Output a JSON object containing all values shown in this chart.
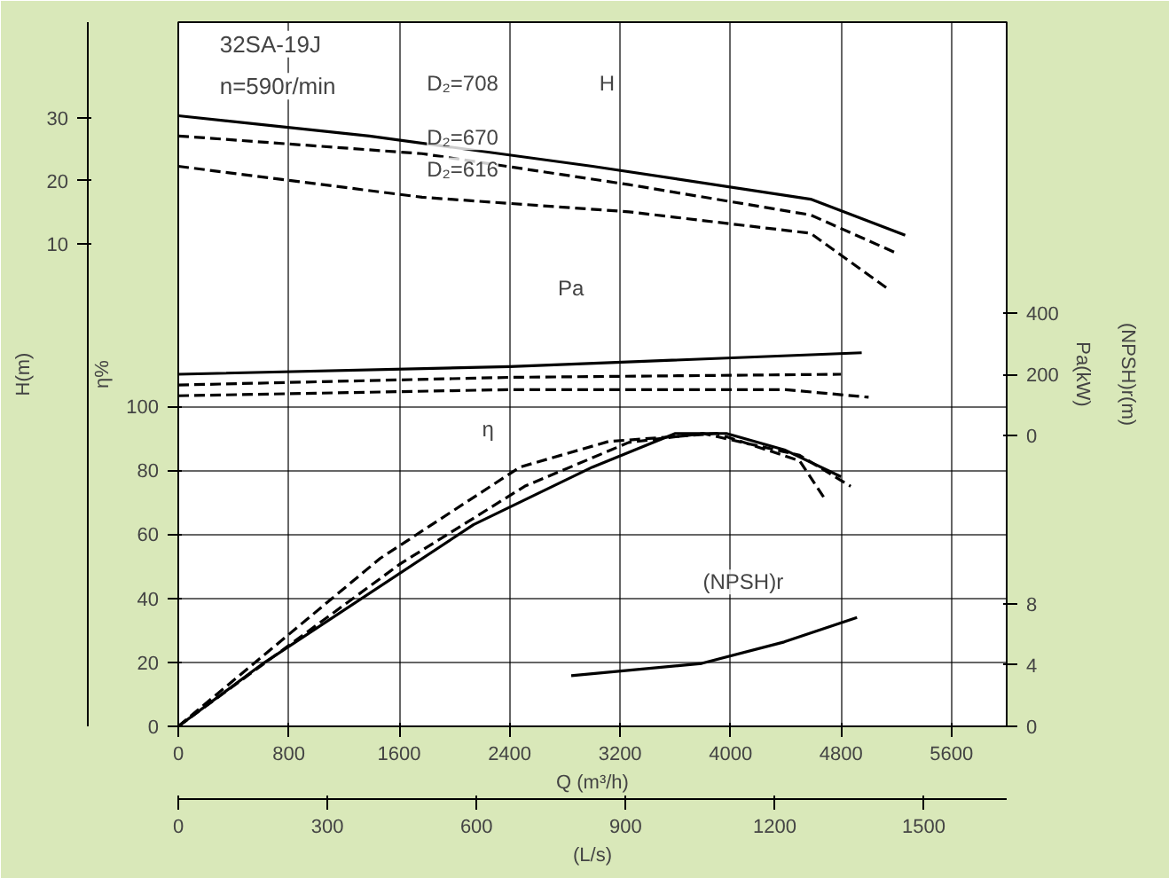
{
  "chart_data": [
    {
      "type": "line",
      "title": "32SA-19J",
      "subtitle": "n=590r/min",
      "xlabel": "Q (m³/h)",
      "x2label": "(L/s)",
      "ylabel": "η%",
      "y2label": "H(m)",
      "y3label": "Pa(kW)",
      "xlim": [
        0,
        6000
      ],
      "xticks": [
        0,
        800,
        1600,
        2400,
        3200,
        4000,
        4800,
        5600
      ],
      "x2lim": [
        0,
        1666.7
      ],
      "x2ticks": [
        0,
        300,
        600,
        900,
        1200,
        1500
      ],
      "ylim": [
        0,
        220
      ],
      "yticks": [
        0,
        20,
        40,
        60,
        80,
        100
      ],
      "y2lim": [
        -66.3,
        45.1
      ],
      "y2ticks": [
        10,
        20,
        30
      ],
      "y3lim": [
        -947,
        1347
      ],
      "y3ticks": [
        0,
        200,
        400
      ],
      "grid": true,
      "marker": "none",
      "series": [
        {
          "axis": "y2",
          "color": "#000000",
          "line_style": "solid",
          "x": [
            0,
            1384,
            3000,
            4580,
            5265
          ],
          "values": [
            30.3,
            27.1,
            22.3,
            17.1,
            11.4
          ]
        },
        {
          "axis": "y2",
          "color": "#000000",
          "line_style": "dashed",
          "x": [
            0,
            1766,
            3263,
            4580,
            5198
          ],
          "values": [
            27.1,
            24.3,
            19.4,
            14.6,
            8.6
          ]
        },
        {
          "axis": "y2",
          "color": "#000000",
          "line_style": "dashed",
          "x": [
            0,
            1766,
            3263,
            4580,
            5141
          ],
          "values": [
            22.3,
            17.4,
            15.1,
            11.7,
            2.9
          ]
        },
        {
          "axis": "y3",
          "color": "#000000",
          "line_style": "solid",
          "x": [
            0,
            2400,
            4950
          ],
          "values": [
            200,
            225,
            270
          ]
        },
        {
          "axis": "y3",
          "color": "#000000",
          "line_style": "dashed",
          "x": [
            0,
            2400,
            4800
          ],
          "values": [
            165,
            190,
            200
          ]
        },
        {
          "axis": "y3",
          "color": "#000000",
          "line_style": "dashed",
          "x": [
            0,
            2400,
            4400,
            5000
          ],
          "values": [
            130,
            150,
            150,
            125
          ]
        },
        {
          "color": "#000000",
          "line_style": "solid",
          "x": [
            0,
            619,
            2138,
            3000,
            3600,
            3970,
            4390,
            4800
          ],
          "values": [
            0,
            19.8,
            63,
            81,
            91.5,
            91.5,
            86.4,
            78
          ]
        },
        {
          "color": "#000000",
          "line_style": "dashed",
          "x": [
            0,
            1463,
            2475,
            3116,
            3900,
            4500,
            4690
          ],
          "values": [
            0,
            52.5,
            81,
            89,
            91.5,
            83,
            70.6
          ]
        },
        {
          "color": "#000000",
          "line_style": "dashed",
          "x": [
            0,
            1609,
            2509,
            3263,
            3800,
            4500,
            4870
          ],
          "values": [
            0,
            50.8,
            75,
            88.7,
            91.5,
            84.7,
            75
          ]
        }
      ],
      "annotations": [
        "D₂=708",
        "D₂=670",
        "D₂=616",
        "H",
        "Pa",
        "η"
      ]
    },
    {
      "type": "line",
      "ylabel": "(NPSH)r(m)",
      "xlim": [
        0,
        6000
      ],
      "ylim": [
        0,
        45.9
      ],
      "yticks": [
        0,
        4,
        8
      ],
      "tick_labels": "y",
      "marker": "none",
      "series": [
        {
          "color": "#000000",
          "line_style": "solid",
          "x": [
            2846,
            3791,
            4388,
            4916
          ],
          "values": [
            3.3,
            4.1,
            5.5,
            7.1
          ]
        }
      ],
      "annotations": [
        "(NPSH)r"
      ]
    }
  ]
}
